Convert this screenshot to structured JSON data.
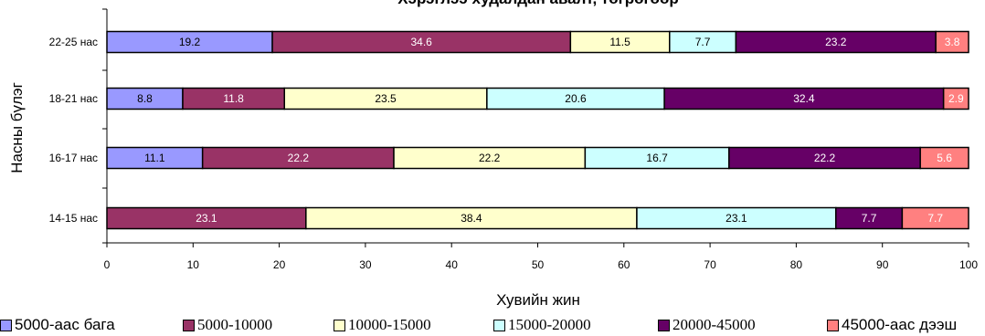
{
  "chart_data": {
    "type": "bar",
    "orientation": "horizontal",
    "stacked": true,
    "title": "Хэрэглээ худалдан авалт, төгрөгөөр",
    "xlabel": "Хувийн жин",
    "ylabel": "Насны бүлэг",
    "xlim": [
      0,
      100
    ],
    "xticks": [
      "0",
      "10",
      "20",
      "30",
      "40",
      "50",
      "60",
      "70",
      "80",
      "90",
      "100"
    ],
    "categories": [
      "22-25 нас",
      "18-21 нас",
      "16-17 нас",
      "14-15 нас"
    ],
    "series": [
      {
        "name": "5000-аас бага",
        "color": "#9999ff",
        "values": [
          19.2,
          8.8,
          11.1,
          0
        ]
      },
      {
        "name": "5000-10000",
        "color": "#993366",
        "values": [
          34.6,
          11.8,
          22.2,
          23.1
        ]
      },
      {
        "name": "10000-15000",
        "color": "#ffffcc",
        "values": [
          11.5,
          23.5,
          22.2,
          38.4
        ]
      },
      {
        "name": "15000-20000",
        "color": "#ccffff",
        "values": [
          7.7,
          20.6,
          16.7,
          23.1
        ]
      },
      {
        "name": "20000-45000",
        "color": "#660066",
        "values": [
          23.2,
          32.4,
          22.2,
          7.7
        ]
      },
      {
        "name": "45000-аас дээш",
        "color": "#ff8080",
        "values": [
          3.8,
          2.9,
          5.6,
          7.7
        ]
      }
    ],
    "legend_position": "bottom",
    "grid": false
  }
}
